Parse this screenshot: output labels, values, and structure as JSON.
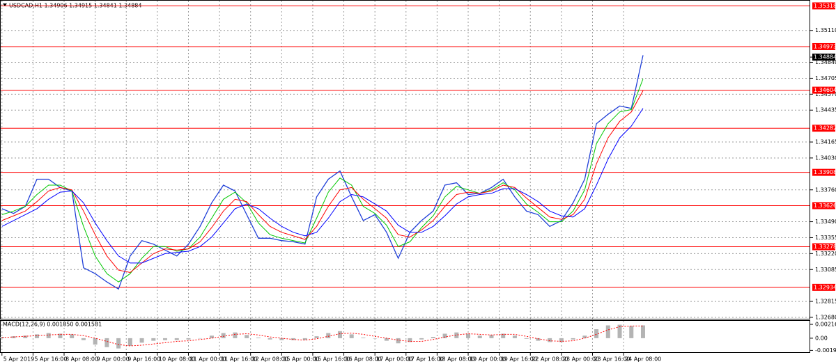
{
  "chart_data": [
    {
      "type": "line",
      "title": "USDCAD,H1 1.34906 1.34915 1.34841 1.34884",
      "x": [
        0,
        6,
        12,
        18,
        24,
        30,
        36,
        42,
        48,
        54,
        60,
        66,
        72,
        78,
        84,
        90,
        96,
        102,
        108,
        114,
        120,
        126,
        132,
        138,
        144,
        150,
        156,
        162,
        168,
        174,
        180,
        186,
        192,
        198,
        204,
        210,
        216,
        222,
        228,
        234,
        240,
        246,
        252,
        258,
        264,
        270,
        276,
        282,
        288,
        294,
        300,
        306,
        312,
        318,
        324,
        330
      ],
      "xlim": [
        -1,
        415
      ],
      "xticks": [
        {
          "value": 0,
          "label": "5 Apr 2019"
        },
        {
          "value": 16,
          "label": "5 Apr 16:00"
        },
        {
          "value": 32,
          "label": "8 Apr 08:00"
        },
        {
          "value": 48,
          "label": "9 Apr 00:00"
        },
        {
          "value": 64,
          "label": "9 Apr 16:00"
        },
        {
          "value": 80,
          "label": "10 Apr 08:00"
        },
        {
          "value": 96,
          "label": "11 Apr 00:00"
        },
        {
          "value": 112,
          "label": "11 Apr 16:00"
        },
        {
          "value": 128,
          "label": "12 Apr 08:00"
        },
        {
          "value": 144,
          "label": "15 Apr 00:00"
        },
        {
          "value": 160,
          "label": "15 Apr 16:00"
        },
        {
          "value": 176,
          "label": "16 Apr 08:00"
        },
        {
          "value": 192,
          "label": "17 Apr 00:00"
        },
        {
          "value": 208,
          "label": "17 Apr 16:00"
        },
        {
          "value": 224,
          "label": "18 Apr 08:00"
        },
        {
          "value": 240,
          "label": "19 Apr 00:00"
        },
        {
          "value": 256,
          "label": "19 Apr 16:00"
        },
        {
          "value": 272,
          "label": "22 Apr 08:00"
        },
        {
          "value": 288,
          "label": "23 Apr 00:00"
        },
        {
          "value": 304,
          "label": "23 Apr 16:00"
        },
        {
          "value": 320,
          "label": "24 Apr 08:00"
        }
      ],
      "ylim": [
        1.32668,
        1.35356
      ],
      "yticks": [
        {
          "value": 1.3511,
          "label": "1.35110"
        },
        {
          "value": 1.3484,
          "label": "1.34840"
        },
        1.34705,
        {
          "value": 1.3457,
          "label": "1.34570"
        },
        1.34435,
        1.34165,
        {
          "value": 1.3403,
          "label": "1.34030"
        },
        {
          "value": 1.3376,
          "label": "1.33760"
        },
        {
          "value": 1.3349,
          "label": "1.33490"
        },
        1.33355,
        {
          "value": 1.3322,
          "label": "1.33220"
        },
        1.33085,
        1.32815,
        {
          "value": 1.3268,
          "label": "1.32680"
        }
      ],
      "grid": true,
      "series": [
        {
          "color": "#1f3fd8",
          "width": 1.3,
          "values": [
            1.336,
            1.3356,
            1.3362,
            1.3385,
            1.3385,
            1.3378,
            1.3375,
            1.331,
            1.3305,
            1.3298,
            1.3292,
            1.332,
            1.3333,
            1.333,
            1.3325,
            1.332,
            1.333,
            1.3345,
            1.3365,
            1.338,
            1.3375,
            1.3355,
            1.3335,
            1.3335,
            1.3333,
            1.3332,
            1.333,
            1.337,
            1.3385,
            1.3392,
            1.337,
            1.335,
            1.3355,
            1.334,
            1.3318,
            1.334,
            1.335,
            1.3358,
            1.338,
            1.3382,
            1.3372,
            1.3373,
            1.3378,
            1.3385,
            1.337,
            1.3358,
            1.3355,
            1.3345,
            1.335,
            1.3365,
            1.3385,
            1.3432,
            1.344,
            1.3447,
            1.3445,
            1.349
          ]
        },
        {
          "color": "#00c800",
          "width": 1,
          "values": [
            1.3355,
            1.3358,
            1.3362,
            1.3372,
            1.338,
            1.338,
            1.3375,
            1.3345,
            1.332,
            1.3305,
            1.3298,
            1.3305,
            1.3318,
            1.3328,
            1.3328,
            1.3324,
            1.3326,
            1.3336,
            1.3352,
            1.3368,
            1.3374,
            1.3365,
            1.3348,
            1.3338,
            1.3335,
            1.3333,
            1.3331,
            1.3352,
            1.3374,
            1.3386,
            1.338,
            1.3362,
            1.3356,
            1.3346,
            1.3328,
            1.3332,
            1.3344,
            1.3354,
            1.337,
            1.3379,
            1.3376,
            1.3373,
            1.3376,
            1.3382,
            1.3376,
            1.3364,
            1.3357,
            1.3349,
            1.3349,
            1.3358,
            1.3376,
            1.3415,
            1.3432,
            1.3442,
            1.3444,
            1.347
          ]
        },
        {
          "color": "#ff0000",
          "width": 1,
          "values": [
            1.335,
            1.3354,
            1.3358,
            1.3366,
            1.3375,
            1.3378,
            1.3376,
            1.3358,
            1.3338,
            1.332,
            1.3308,
            1.3306,
            1.3314,
            1.3322,
            1.3326,
            1.3325,
            1.3326,
            1.3332,
            1.3344,
            1.3358,
            1.3368,
            1.3366,
            1.3355,
            1.3345,
            1.334,
            1.3337,
            1.3334,
            1.3345,
            1.3362,
            1.3376,
            1.3378,
            1.3368,
            1.336,
            1.3352,
            1.3338,
            1.3336,
            1.3342,
            1.335,
            1.3362,
            1.3372,
            1.3374,
            1.3373,
            1.3375,
            1.338,
            1.3378,
            1.3369,
            1.3361,
            1.3353,
            1.3351,
            1.3355,
            1.3368,
            1.3398,
            1.342,
            1.3434,
            1.3442,
            1.346
          ]
        },
        {
          "color": "#0000ff",
          "width": 1,
          "values": [
            1.3345,
            1.335,
            1.3355,
            1.336,
            1.3368,
            1.3374,
            1.3375,
            1.3365,
            1.3348,
            1.3333,
            1.332,
            1.3314,
            1.3314,
            1.3318,
            1.3322,
            1.3323,
            1.3324,
            1.3328,
            1.3336,
            1.3348,
            1.336,
            1.3364,
            1.336,
            1.3352,
            1.3345,
            1.334,
            1.3337,
            1.334,
            1.3352,
            1.3366,
            1.3372,
            1.337,
            1.3364,
            1.3358,
            1.3346,
            1.334,
            1.334,
            1.3345,
            1.3354,
            1.3364,
            1.337,
            1.3372,
            1.3373,
            1.3377,
            1.3377,
            1.3372,
            1.3366,
            1.3358,
            1.3354,
            1.3353,
            1.336,
            1.338,
            1.3402,
            1.342,
            1.343,
            1.3445
          ]
        }
      ],
      "levels": [
        1.35318,
        1.34973,
        1.34604,
        1.34282,
        1.33908,
        1.33626,
        1.33278,
        1.32934
      ],
      "level_color": "#ff0000",
      "current_price": 1.34884
    },
    {
      "type": "macd",
      "title": "MACD(12,26,9) 0.001850 0.001581",
      "ylim": [
        -0.0024,
        0.0026
      ],
      "yticks": [
        0.00216,
        {
          "value": 0,
          "label": "0.00"
        },
        -0.0019
      ],
      "series": [
        {
          "style": "bar",
          "color": "#b4b4b4",
          "values": [
            0.0002,
            0.0003,
            0.0004,
            0.0006,
            0.0008,
            0.0007,
            0.0006,
            -0.0003,
            -0.001,
            -0.0014,
            -0.0016,
            -0.0012,
            -0.0007,
            -0.0004,
            -0.0003,
            -0.0003,
            -0.0002,
            0.0,
            0.0004,
            0.0008,
            0.0009,
            0.0005,
            0.0001,
            -0.0002,
            -0.0003,
            -0.0003,
            -0.0003,
            0.0003,
            0.0008,
            0.0011,
            0.0006,
            0.0001,
            0.0,
            -0.0004,
            -0.0008,
            -0.0006,
            -0.0002,
            0.0002,
            0.0007,
            0.0009,
            0.0007,
            0.0004,
            0.0005,
            0.0007,
            0.0004,
            -0.0001,
            -0.0004,
            -0.0006,
            -0.0006,
            -0.0002,
            0.0004,
            0.0014,
            0.002,
            0.0021,
            0.0019,
            0.002
          ]
        },
        {
          "style": "dotted",
          "color": "#ff0000",
          "values": [
            0.0001,
            0.0002,
            0.0003,
            0.0004,
            0.0005,
            0.0006,
            0.0006,
            0.0004,
            0.0,
            -0.0005,
            -0.001,
            -0.0012,
            -0.0011,
            -0.0009,
            -0.0007,
            -0.0005,
            -0.0004,
            -0.0002,
            0.0,
            0.0003,
            0.0006,
            0.0007,
            0.0005,
            0.0002,
            0.0,
            -0.0002,
            -0.0003,
            -0.0001,
            0.0003,
            0.0007,
            0.0008,
            0.0006,
            0.0003,
            0.0,
            -0.0003,
            -0.0005,
            -0.0005,
            -0.0002,
            0.0002,
            0.0005,
            0.0007,
            0.0006,
            0.0005,
            0.0006,
            0.0006,
            0.0003,
            -0.0001,
            -0.0004,
            -0.0005,
            -0.0004,
            0.0,
            0.0006,
            0.0013,
            0.0018,
            0.0019,
            0.0019
          ]
        }
      ]
    }
  ]
}
